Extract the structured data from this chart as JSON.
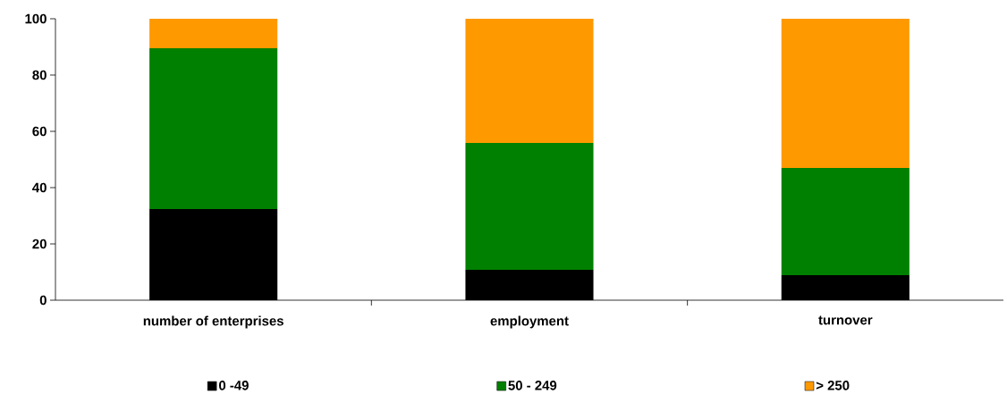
{
  "chart_data": {
    "type": "bar",
    "stacked": true,
    "categories": [
      "number of enterprises",
      "employment",
      "turnover"
    ],
    "series": [
      {
        "name": "0 -49",
        "color": "#000000",
        "values": [
          32.4,
          10.8,
          8.9
        ]
      },
      {
        "name": "50 - 249",
        "color": "#008000",
        "values": [
          57.1,
          45.1,
          38.1
        ]
      },
      {
        "name": "> 250",
        "color": "#ff9900",
        "values": [
          10.5,
          44.1,
          53.0
        ]
      }
    ],
    "ylim": [
      0,
      100
    ],
    "yticks": [
      0,
      20,
      40,
      60,
      80,
      100
    ],
    "legend": "bottom"
  }
}
